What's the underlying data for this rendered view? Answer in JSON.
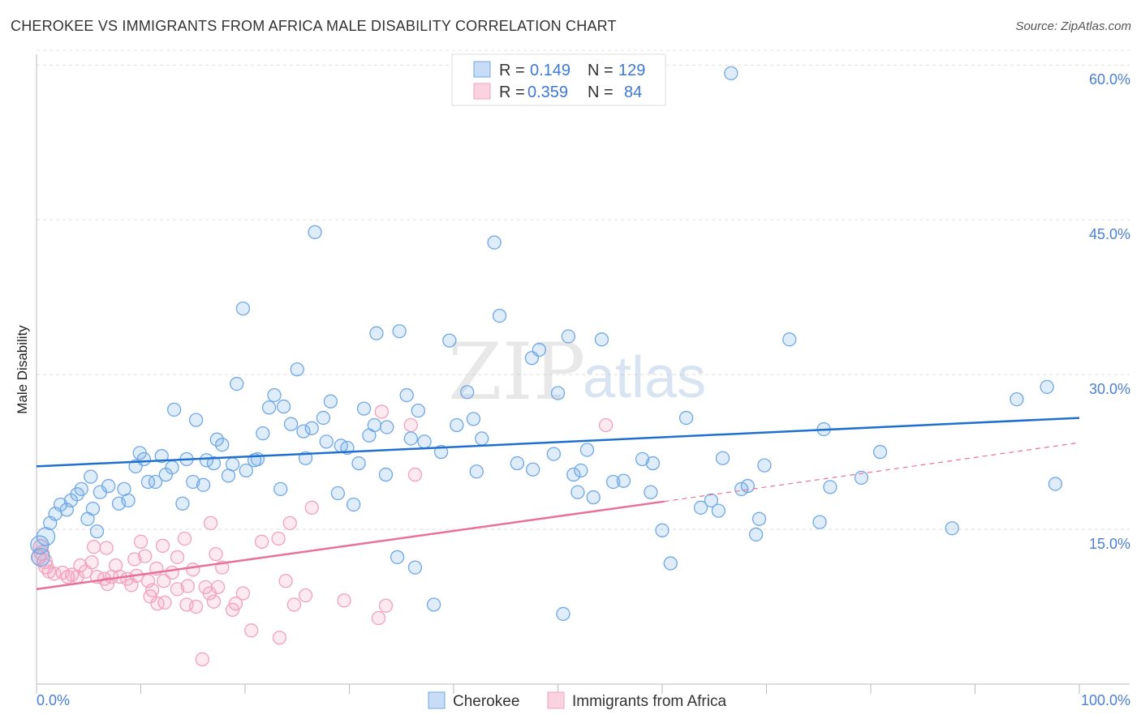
{
  "title": "CHEROKEE VS IMMIGRANTS FROM AFRICA MALE DISABILITY CORRELATION CHART",
  "source": "Source: ZipAtlas.com",
  "chart_data": {
    "type": "scatter",
    "title": "CHEROKEE VS IMMIGRANTS FROM AFRICA MALE DISABILITY CORRELATION CHART",
    "xlabel": "",
    "ylabel": "Male Disability",
    "xlim": [
      0,
      100
    ],
    "ylim": [
      0,
      62
    ],
    "x_tick_labels": [
      "0.0%",
      "100.0%"
    ],
    "y_ticks": [
      15,
      30,
      45,
      60
    ],
    "y_tick_labels": [
      "15.0%",
      "30.0%",
      "45.0%",
      "60.0%"
    ],
    "grid": true,
    "legend_placement": "top-center",
    "watermark": "ZIPatlas",
    "legend": [
      {
        "name": "Cherokee",
        "r_label": "R =",
        "r": "0.149",
        "n_label": "N =",
        "n": "129",
        "color": "#6fa8e6"
      },
      {
        "name": "Immigrants from Africa",
        "r_label": "R =",
        "r": "0.359",
        "n_label": "N =",
        "n": "84",
        "color": "#f2a0bc"
      }
    ],
    "series": [
      {
        "name": "Cherokee",
        "color": "#6fa8e6",
        "line_color": "#1f6fd1",
        "trend": {
          "x": [
            0,
            100
          ],
          "y": [
            21.1,
            25.8
          ]
        },
        "points": [
          [
            66.6,
            59.2
          ],
          [
            26.7,
            43.8
          ],
          [
            43.9,
            42.8
          ],
          [
            19.8,
            36.4
          ],
          [
            44.4,
            35.7
          ],
          [
            32.6,
            34.0
          ],
          [
            34.8,
            34.2
          ],
          [
            51.0,
            33.7
          ],
          [
            54.2,
            33.4
          ],
          [
            72.2,
            33.4
          ],
          [
            39.6,
            33.3
          ],
          [
            48.2,
            32.4
          ],
          [
            47.5,
            31.6
          ],
          [
            25.0,
            30.5
          ],
          [
            19.2,
            29.1
          ],
          [
            50.0,
            28.2
          ],
          [
            41.3,
            28.3
          ],
          [
            35.5,
            28.0
          ],
          [
            22.8,
            28.0
          ],
          [
            94.0,
            27.6
          ],
          [
            96.9,
            28.8
          ],
          [
            13.2,
            26.6
          ],
          [
            22.3,
            26.8
          ],
          [
            23.7,
            26.9
          ],
          [
            28.2,
            27.4
          ],
          [
            31.4,
            26.7
          ],
          [
            36.6,
            26.5
          ],
          [
            15.3,
            25.6
          ],
          [
            27.5,
            25.8
          ],
          [
            41.9,
            25.7
          ],
          [
            62.3,
            25.8
          ],
          [
            24.4,
            25.2
          ],
          [
            32.4,
            25.1
          ],
          [
            33.6,
            24.9
          ],
          [
            40.3,
            25.1
          ],
          [
            26.4,
            24.8
          ],
          [
            21.7,
            24.3
          ],
          [
            25.6,
            24.5
          ],
          [
            31.9,
            24.1
          ],
          [
            17.3,
            23.7
          ],
          [
            35.9,
            23.8
          ],
          [
            37.2,
            23.5
          ],
          [
            42.7,
            23.8
          ],
          [
            27.8,
            23.5
          ],
          [
            17.8,
            23.2
          ],
          [
            29.2,
            23.1
          ],
          [
            29.8,
            22.9
          ],
          [
            75.5,
            24.7
          ],
          [
            80.9,
            22.5
          ],
          [
            38.8,
            22.5
          ],
          [
            52.8,
            22.7
          ],
          [
            49.6,
            22.3
          ],
          [
            9.9,
            22.4
          ],
          [
            12.0,
            22.1
          ],
          [
            10.3,
            21.8
          ],
          [
            14.4,
            21.8
          ],
          [
            16.3,
            21.7
          ],
          [
            17.0,
            21.4
          ],
          [
            18.8,
            21.3
          ],
          [
            20.9,
            21.7
          ],
          [
            21.2,
            21.8
          ],
          [
            25.8,
            21.9
          ],
          [
            58.1,
            21.8
          ],
          [
            59.1,
            21.4
          ],
          [
            65.8,
            21.9
          ],
          [
            30.9,
            21.4
          ],
          [
            46.1,
            21.4
          ],
          [
            9.5,
            21.1
          ],
          [
            13.0,
            21.0
          ],
          [
            47.6,
            20.8
          ],
          [
            69.8,
            21.2
          ],
          [
            52.2,
            20.7
          ],
          [
            51.5,
            20.3
          ],
          [
            42.2,
            20.6
          ],
          [
            33.5,
            20.3
          ],
          [
            18.4,
            20.2
          ],
          [
            20.1,
            20.7
          ],
          [
            12.4,
            20.3
          ],
          [
            5.2,
            20.1
          ],
          [
            10.7,
            19.6
          ],
          [
            11.4,
            19.6
          ],
          [
            15.0,
            19.6
          ],
          [
            16.0,
            19.3
          ],
          [
            55.3,
            19.6
          ],
          [
            56.3,
            19.7
          ],
          [
            79.1,
            20.0
          ],
          [
            97.7,
            19.4
          ],
          [
            6.9,
            19.2
          ],
          [
            8.4,
            18.9
          ],
          [
            6.1,
            18.6
          ],
          [
            28.9,
            18.5
          ],
          [
            23.4,
            18.9
          ],
          [
            51.9,
            18.6
          ],
          [
            58.9,
            18.6
          ],
          [
            53.4,
            18.1
          ],
          [
            76.1,
            19.1
          ],
          [
            68.2,
            19.2
          ],
          [
            67.6,
            18.9
          ],
          [
            4.3,
            18.9
          ],
          [
            3.9,
            18.4
          ],
          [
            3.3,
            17.8
          ],
          [
            2.3,
            17.4
          ],
          [
            8.8,
            17.8
          ],
          [
            7.9,
            17.5
          ],
          [
            14.0,
            17.5
          ],
          [
            30.4,
            17.4
          ],
          [
            64.7,
            17.8
          ],
          [
            63.7,
            17.1
          ],
          [
            65.4,
            16.8
          ],
          [
            5.4,
            17.0
          ],
          [
            1.8,
            16.5
          ],
          [
            2.9,
            16.9
          ],
          [
            1.3,
            15.6
          ],
          [
            4.9,
            16.0
          ],
          [
            69.3,
            16.0
          ],
          [
            75.1,
            15.7
          ],
          [
            0.9,
            14.3
          ],
          [
            5.8,
            14.8
          ],
          [
            60.0,
            14.9
          ],
          [
            69.0,
            14.5
          ],
          [
            87.8,
            15.1
          ],
          [
            34.6,
            12.3
          ],
          [
            60.8,
            11.7
          ],
          [
            36.3,
            11.3
          ],
          [
            38.1,
            7.7
          ],
          [
            50.5,
            6.8
          ],
          [
            0.4,
            12.3
          ],
          [
            0.3,
            13.5
          ]
        ]
      },
      {
        "name": "Immigrants from Africa",
        "color": "#f2a0bc",
        "line_color": "#e8709a",
        "trend": {
          "x": [
            0,
            60.2
          ],
          "y": [
            9.2,
            17.7
          ]
        },
        "trend_dashed": {
          "x": [
            60.2,
            100
          ],
          "y": [
            17.7,
            23.4
          ]
        },
        "points": [
          [
            33.1,
            26.4
          ],
          [
            35.9,
            25.1
          ],
          [
            54.6,
            25.1
          ],
          [
            36.3,
            20.3
          ],
          [
            26.4,
            17.1
          ],
          [
            16.7,
            15.6
          ],
          [
            24.3,
            15.6
          ],
          [
            5.5,
            13.3
          ],
          [
            6.7,
            13.2
          ],
          [
            10.0,
            13.8
          ],
          [
            14.2,
            14.1
          ],
          [
            12.1,
            13.4
          ],
          [
            21.6,
            13.8
          ],
          [
            23.2,
            14.1
          ],
          [
            17.2,
            12.6
          ],
          [
            0.4,
            13.3
          ],
          [
            0.2,
            12.3
          ],
          [
            0.8,
            11.9
          ],
          [
            4.2,
            11.5
          ],
          [
            5.3,
            11.8
          ],
          [
            7.6,
            11.5
          ],
          [
            9.4,
            12.1
          ],
          [
            10.4,
            12.4
          ],
          [
            13.5,
            12.3
          ],
          [
            11.5,
            11.2
          ],
          [
            17.8,
            11.3
          ],
          [
            15.0,
            11.1
          ],
          [
            1.2,
            10.9
          ],
          [
            1.7,
            10.7
          ],
          [
            2.5,
            10.8
          ],
          [
            3.4,
            10.6
          ],
          [
            3.9,
            10.4
          ],
          [
            4.7,
            10.9
          ],
          [
            5.8,
            10.4
          ],
          [
            6.5,
            10.2
          ],
          [
            6.8,
            9.7
          ],
          [
            8.0,
            10.4
          ],
          [
            8.7,
            10.2
          ],
          [
            9.6,
            10.5
          ],
          [
            10.7,
            10.0
          ],
          [
            12.2,
            10.0
          ],
          [
            13.0,
            10.8
          ],
          [
            14.5,
            9.5
          ],
          [
            16.2,
            9.4
          ],
          [
            17.4,
            9.4
          ],
          [
            16.6,
            8.8
          ],
          [
            13.5,
            9.2
          ],
          [
            11.1,
            9.1
          ],
          [
            10.9,
            8.5
          ],
          [
            12.3,
            7.9
          ],
          [
            11.6,
            7.8
          ],
          [
            14.4,
            7.7
          ],
          [
            15.3,
            7.5
          ],
          [
            17.0,
            8.0
          ],
          [
            19.8,
            8.8
          ],
          [
            19.1,
            7.8
          ],
          [
            18.8,
            7.2
          ],
          [
            23.9,
            10.0
          ],
          [
            25.8,
            8.6
          ],
          [
            24.7,
            7.7
          ],
          [
            29.5,
            8.1
          ],
          [
            33.5,
            7.6
          ],
          [
            32.8,
            6.4
          ],
          [
            20.6,
            5.2
          ],
          [
            23.3,
            4.5
          ],
          [
            15.9,
            2.4
          ],
          [
            0.5,
            12.7
          ],
          [
            0.9,
            11.4
          ],
          [
            3.0,
            10.4
          ],
          [
            7.2,
            10.4
          ],
          [
            9.1,
            9.6
          ]
        ]
      }
    ]
  }
}
